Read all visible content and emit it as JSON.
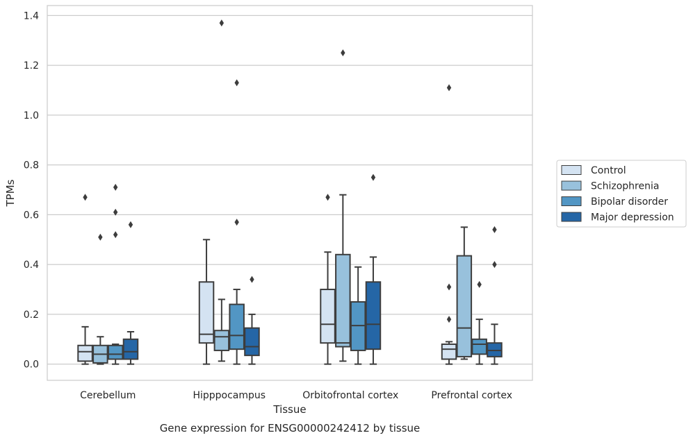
{
  "chart_data": {
    "type": "box",
    "xlabel": "Tissue",
    "ylabel": "TPMs",
    "caption": "Gene expression for ENSG00000242412 by tissue",
    "ylim": [
      -0.065,
      1.44
    ],
    "yticks": [
      "0.0",
      "0.2",
      "0.4",
      "0.6",
      "0.8",
      "1.0",
      "1.2",
      "1.4"
    ],
    "categories": [
      "Cerebellum",
      "Hipppocampus",
      "Orbitofrontal cortex",
      "Prefrontal cortex"
    ],
    "grid": "horizontal",
    "legend_position": "right",
    "series": [
      {
        "name": "Control",
        "color": "#d4e3f2",
        "boxes": [
          {
            "whislo": 0.0,
            "q1": 0.012,
            "med": 0.05,
            "q3": 0.075,
            "whishi": 0.15,
            "fliers": [
              0.67
            ]
          },
          {
            "whislo": 0.0,
            "q1": 0.085,
            "med": 0.12,
            "q3": 0.33,
            "whishi": 0.5,
            "fliers": []
          },
          {
            "whislo": 0.0,
            "q1": 0.085,
            "med": 0.16,
            "q3": 0.3,
            "whishi": 0.45,
            "fliers": [
              0.67
            ]
          },
          {
            "whislo": 0.0,
            "q1": 0.02,
            "med": 0.06,
            "q3": 0.08,
            "whishi": 0.09,
            "fliers": [
              0.31,
              0.18,
              1.11
            ]
          }
        ]
      },
      {
        "name": "Schizophrenia",
        "color": "#98c1dc",
        "boxes": [
          {
            "whislo": 0.0,
            "q1": 0.005,
            "med": 0.04,
            "q3": 0.075,
            "whishi": 0.11,
            "fliers": [
              0.51
            ]
          },
          {
            "whislo": 0.012,
            "q1": 0.055,
            "med": 0.11,
            "q3": 0.135,
            "whishi": 0.26,
            "fliers": [
              1.37
            ]
          },
          {
            "whislo": 0.012,
            "q1": 0.07,
            "med": 0.085,
            "q3": 0.44,
            "whishi": 0.68,
            "fliers": [
              1.25
            ]
          },
          {
            "whislo": 0.02,
            "q1": 0.03,
            "med": 0.145,
            "q3": 0.435,
            "whishi": 0.55,
            "fliers": []
          }
        ]
      },
      {
        "name": "Bipolar disorder",
        "color": "#5296c4",
        "boxes": [
          {
            "whislo": 0.0,
            "q1": 0.02,
            "med": 0.04,
            "q3": 0.075,
            "whishi": 0.08,
            "fliers": [
              0.52,
              0.61,
              0.71
            ]
          },
          {
            "whislo": 0.0,
            "q1": 0.06,
            "med": 0.115,
            "q3": 0.24,
            "whishi": 0.3,
            "fliers": [
              0.57,
              1.13
            ]
          },
          {
            "whislo": 0.0,
            "q1": 0.055,
            "med": 0.155,
            "q3": 0.25,
            "whishi": 0.39,
            "fliers": []
          },
          {
            "whislo": 0.0,
            "q1": 0.04,
            "med": 0.08,
            "q3": 0.1,
            "whishi": 0.18,
            "fliers": [
              0.32
            ]
          }
        ]
      },
      {
        "name": "Major depression",
        "color": "#2566a6",
        "boxes": [
          {
            "whislo": 0.0,
            "q1": 0.02,
            "med": 0.05,
            "q3": 0.1,
            "whishi": 0.13,
            "fliers": [
              0.56
            ]
          },
          {
            "whislo": 0.0,
            "q1": 0.035,
            "med": 0.07,
            "q3": 0.145,
            "whishi": 0.2,
            "fliers": [
              0.34
            ]
          },
          {
            "whislo": 0.0,
            "q1": 0.06,
            "med": 0.16,
            "q3": 0.33,
            "whishi": 0.43,
            "fliers": [
              0.75
            ]
          },
          {
            "whislo": 0.0,
            "q1": 0.03,
            "med": 0.055,
            "q3": 0.085,
            "whishi": 0.16,
            "fliers": [
              0.4,
              0.54
            ]
          }
        ]
      }
    ]
  }
}
